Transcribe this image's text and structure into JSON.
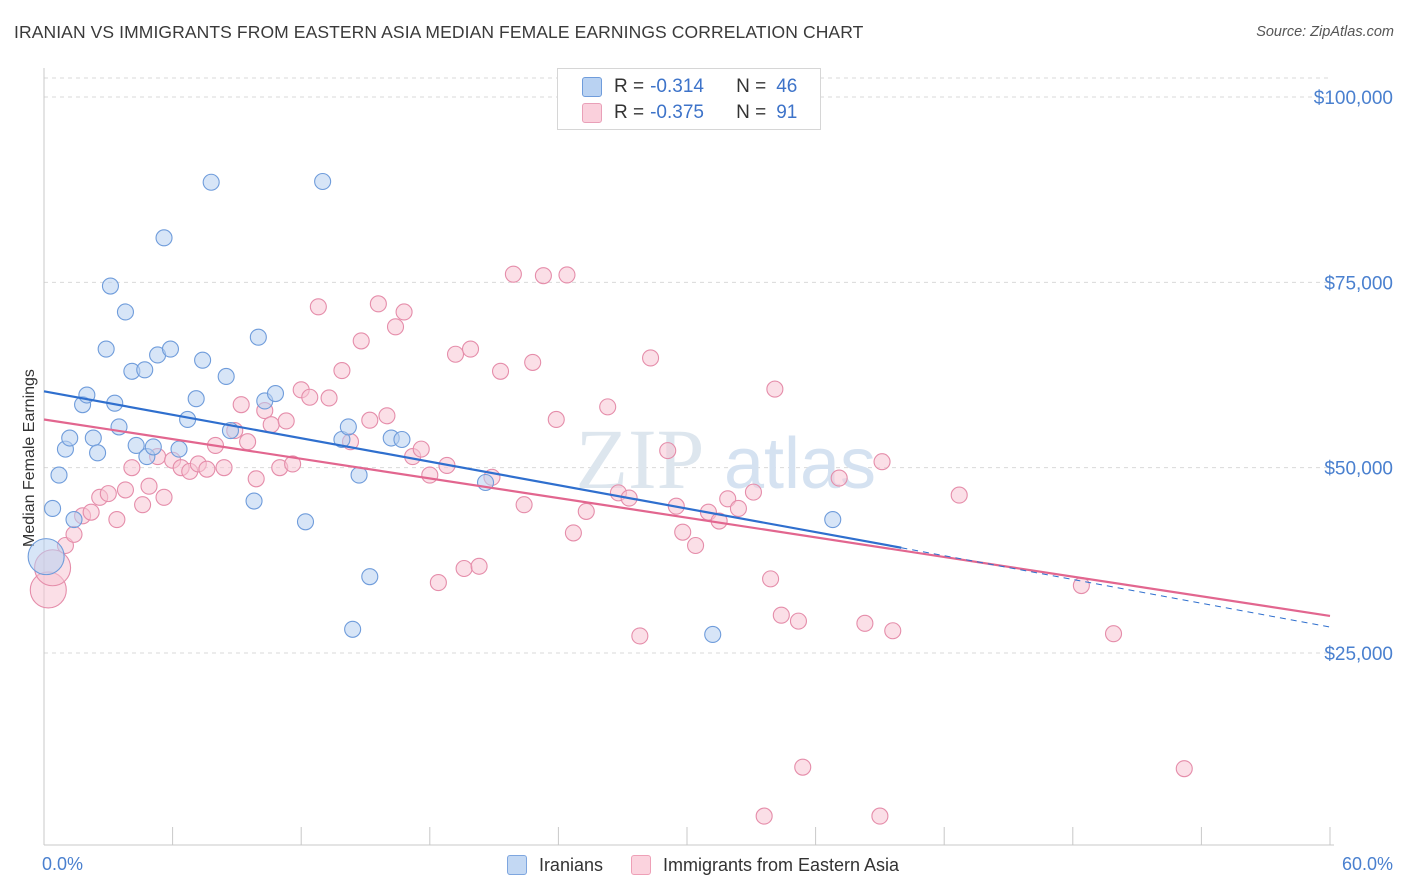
{
  "header": {
    "title": "IRANIAN VS IMMIGRANTS FROM EASTERN ASIA MEDIAN FEMALE EARNINGS CORRELATION CHART",
    "source": "Source: ZipAtlas.com"
  },
  "watermark": {
    "zip": "ZIP",
    "atlas": "atlas"
  },
  "legend_top": [
    {
      "r_key": "R =",
      "r_value": "-0.314",
      "n_key": "N =",
      "n_value": "46",
      "color": "#9ec1ec",
      "border": "#5b8fd6"
    },
    {
      "r_key": "R =",
      "r_value": "-0.375",
      "n_key": "N =",
      "n_value": "91",
      "color": "#f7bccd",
      "border": "#e688a6"
    }
  ],
  "legend_bottom": [
    {
      "label": "Iranians",
      "color": "#c3d8f3",
      "border": "#7ea6df"
    },
    {
      "label": "Immigrants from Eastern Asia",
      "color": "#fbd3de",
      "border": "#eea0b7"
    }
  ],
  "colors": {
    "iranians_fill": "#b7d0f1",
    "iranians_stroke": "#6f9cdb",
    "iranians_line": "#2f6fce",
    "immigrants_fill": "#f8c4d3",
    "immigrants_stroke": "#e58daa",
    "immigrants_line": "#e2668f",
    "tick_label": "#4a80cf",
    "grid": "#dadada"
  },
  "chart_data": {
    "type": "scatter",
    "title": "IRANIAN VS IMMIGRANTS FROM EASTERN ASIA MEDIAN FEMALE EARNINGS CORRELATION CHART",
    "xlabel": "",
    "ylabel": "Median Female Earnings",
    "x_unit": "%",
    "xlim": [
      0,
      60
    ],
    "ylim": [
      0,
      105000
    ],
    "x_tick_labels": [
      {
        "value": 0,
        "label": "0.0%"
      },
      {
        "value": 60,
        "label": "60.0%"
      }
    ],
    "y_tick_labels": [
      {
        "value": 25000,
        "label": "$25,000"
      },
      {
        "value": 50000,
        "label": "$50,000"
      },
      {
        "value": 75000,
        "label": "$75,000"
      },
      {
        "value": 100000,
        "label": "$100,000"
      }
    ],
    "grid": true,
    "series": [
      {
        "name": "Iranians",
        "r": -0.314,
        "n": 46,
        "trend": {
          "x": [
            0,
            40.0
          ],
          "y": [
            60300,
            39200
          ]
        },
        "trend_extension": {
          "x": [
            40.0,
            60.0
          ],
          "y": [
            39200,
            28500
          ]
        },
        "points": [
          {
            "x": 0.1,
            "y": 38000,
            "big": true
          },
          {
            "x": 0.4,
            "y": 44500
          },
          {
            "x": 0.7,
            "y": 49000
          },
          {
            "x": 1.0,
            "y": 52500
          },
          {
            "x": 1.2,
            "y": 54000
          },
          {
            "x": 1.4,
            "y": 43000
          },
          {
            "x": 1.8,
            "y": 58500
          },
          {
            "x": 2.0,
            "y": 59800
          },
          {
            "x": 2.3,
            "y": 54000
          },
          {
            "x": 2.5,
            "y": 52000
          },
          {
            "x": 2.9,
            "y": 66000
          },
          {
            "x": 3.1,
            "y": 74500
          },
          {
            "x": 3.3,
            "y": 58700
          },
          {
            "x": 3.5,
            "y": 55500
          },
          {
            "x": 3.8,
            "y": 71000
          },
          {
            "x": 4.1,
            "y": 63000
          },
          {
            "x": 4.3,
            "y": 53000
          },
          {
            "x": 4.7,
            "y": 63200
          },
          {
            "x": 4.8,
            "y": 51500
          },
          {
            "x": 5.1,
            "y": 52800
          },
          {
            "x": 5.3,
            "y": 65200
          },
          {
            "x": 5.6,
            "y": 81000
          },
          {
            "x": 5.9,
            "y": 66000
          },
          {
            "x": 6.3,
            "y": 52500
          },
          {
            "x": 6.7,
            "y": 56500
          },
          {
            "x": 7.1,
            "y": 59300
          },
          {
            "x": 7.4,
            "y": 64500
          },
          {
            "x": 7.8,
            "y": 88500
          },
          {
            "x": 8.5,
            "y": 62300
          },
          {
            "x": 8.7,
            "y": 55000
          },
          {
            "x": 9.8,
            "y": 45500
          },
          {
            "x": 10.0,
            "y": 67600
          },
          {
            "x": 10.3,
            "y": 59000
          },
          {
            "x": 10.8,
            "y": 60000
          },
          {
            "x": 12.2,
            "y": 42700
          },
          {
            "x": 13.0,
            "y": 88600
          },
          {
            "x": 13.9,
            "y": 53800
          },
          {
            "x": 14.2,
            "y": 55500
          },
          {
            "x": 14.4,
            "y": 28200
          },
          {
            "x": 14.7,
            "y": 49000
          },
          {
            "x": 15.2,
            "y": 35300
          },
          {
            "x": 16.2,
            "y": 54000
          },
          {
            "x": 16.7,
            "y": 53800
          },
          {
            "x": 20.6,
            "y": 48000
          },
          {
            "x": 31.2,
            "y": 27500
          },
          {
            "x": 36.8,
            "y": 43000
          }
        ]
      },
      {
        "name": "Immigrants from Eastern Asia",
        "r": -0.375,
        "n": 91,
        "trend": {
          "x": [
            0,
            60.0
          ],
          "y": [
            56500,
            30000
          ]
        },
        "points": [
          {
            "x": 0.2,
            "y": 33500,
            "big": true
          },
          {
            "x": 0.4,
            "y": 36500,
            "big": true
          },
          {
            "x": 1.0,
            "y": 39500
          },
          {
            "x": 1.4,
            "y": 41000
          },
          {
            "x": 1.8,
            "y": 43500
          },
          {
            "x": 2.2,
            "y": 44000
          },
          {
            "x": 2.6,
            "y": 46000
          },
          {
            "x": 3.0,
            "y": 46500
          },
          {
            "x": 3.4,
            "y": 43000
          },
          {
            "x": 3.8,
            "y": 47000
          },
          {
            "x": 4.1,
            "y": 50000
          },
          {
            "x": 4.6,
            "y": 45000
          },
          {
            "x": 4.9,
            "y": 47500
          },
          {
            "x": 5.3,
            "y": 51500
          },
          {
            "x": 5.6,
            "y": 46000
          },
          {
            "x": 6.0,
            "y": 51000
          },
          {
            "x": 6.4,
            "y": 50000
          },
          {
            "x": 6.8,
            "y": 49500
          },
          {
            "x": 7.2,
            "y": 50500
          },
          {
            "x": 7.6,
            "y": 49800
          },
          {
            "x": 8.0,
            "y": 53000
          },
          {
            "x": 8.4,
            "y": 50000
          },
          {
            "x": 8.9,
            "y": 55000
          },
          {
            "x": 9.2,
            "y": 58500
          },
          {
            "x": 9.5,
            "y": 53500
          },
          {
            "x": 9.9,
            "y": 48500
          },
          {
            "x": 10.3,
            "y": 57700
          },
          {
            "x": 10.6,
            "y": 55800
          },
          {
            "x": 11.0,
            "y": 50000
          },
          {
            "x": 11.3,
            "y": 56300
          },
          {
            "x": 11.6,
            "y": 50500
          },
          {
            "x": 12.0,
            "y": 60500
          },
          {
            "x": 12.4,
            "y": 59500
          },
          {
            "x": 12.8,
            "y": 71700
          },
          {
            "x": 13.3,
            "y": 59400
          },
          {
            "x": 13.9,
            "y": 63100
          },
          {
            "x": 14.3,
            "y": 53500
          },
          {
            "x": 14.8,
            "y": 67100
          },
          {
            "x": 15.2,
            "y": 56400
          },
          {
            "x": 15.6,
            "y": 72100
          },
          {
            "x": 16.0,
            "y": 57000
          },
          {
            "x": 16.4,
            "y": 69000
          },
          {
            "x": 16.8,
            "y": 71000
          },
          {
            "x": 17.2,
            "y": 51500
          },
          {
            "x": 17.6,
            "y": 52500
          },
          {
            "x": 18.0,
            "y": 49000
          },
          {
            "x": 18.4,
            "y": 34500
          },
          {
            "x": 18.8,
            "y": 50300
          },
          {
            "x": 19.2,
            "y": 65300
          },
          {
            "x": 19.6,
            "y": 36400
          },
          {
            "x": 19.9,
            "y": 66000
          },
          {
            "x": 20.3,
            "y": 36700
          },
          {
            "x": 20.9,
            "y": 48700
          },
          {
            "x": 21.3,
            "y": 63000
          },
          {
            "x": 21.9,
            "y": 76100
          },
          {
            "x": 22.4,
            "y": 45000
          },
          {
            "x": 22.8,
            "y": 64200
          },
          {
            "x": 23.3,
            "y": 75900
          },
          {
            "x": 23.9,
            "y": 56500
          },
          {
            "x": 24.4,
            "y": 76000
          },
          {
            "x": 24.7,
            "y": 41200
          },
          {
            "x": 25.3,
            "y": 44100
          },
          {
            "x": 26.3,
            "y": 58200
          },
          {
            "x": 26.8,
            "y": 46600
          },
          {
            "x": 27.3,
            "y": 45900
          },
          {
            "x": 27.8,
            "y": 27300
          },
          {
            "x": 28.3,
            "y": 64800
          },
          {
            "x": 29.1,
            "y": 52300
          },
          {
            "x": 29.5,
            "y": 44800
          },
          {
            "x": 29.8,
            "y": 41300
          },
          {
            "x": 30.4,
            "y": 39500
          },
          {
            "x": 31.0,
            "y": 44000
          },
          {
            "x": 31.5,
            "y": 42800
          },
          {
            "x": 31.9,
            "y": 45800
          },
          {
            "x": 32.4,
            "y": 44500
          },
          {
            "x": 33.1,
            "y": 46700
          },
          {
            "x": 33.6,
            "y": 3000
          },
          {
            "x": 33.9,
            "y": 35000
          },
          {
            "x": 34.4,
            "y": 30100
          },
          {
            "x": 35.2,
            "y": 29300
          },
          {
            "x": 34.1,
            "y": 60600
          },
          {
            "x": 35.4,
            "y": 9600
          },
          {
            "x": 37.1,
            "y": 48600
          },
          {
            "x": 38.3,
            "y": 29000
          },
          {
            "x": 39.1,
            "y": 50800
          },
          {
            "x": 39.6,
            "y": 28000
          },
          {
            "x": 39.0,
            "y": 3000
          },
          {
            "x": 42.7,
            "y": 46300
          },
          {
            "x": 48.4,
            "y": 34100
          },
          {
            "x": 49.9,
            "y": 27600
          },
          {
            "x": 53.2,
            "y": 9400
          }
        ]
      }
    ]
  }
}
